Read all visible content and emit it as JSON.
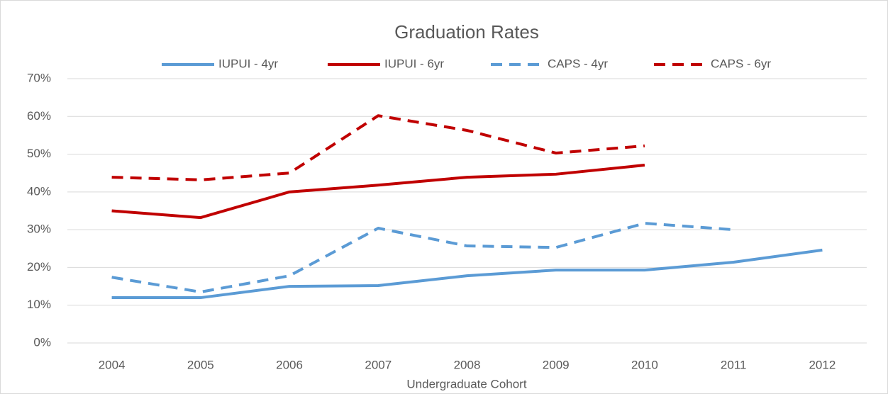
{
  "chart_data": {
    "type": "line",
    "title": "Graduation Rates",
    "x_label": "Undergraduate Cohort",
    "categories": [
      "2004",
      "2005",
      "2006",
      "2007",
      "2008",
      "2009",
      "2010",
      "2011",
      "2012"
    ],
    "series": [
      {
        "name": "IUPUI - 4yr",
        "color": "#5b9bd5",
        "dashed": false,
        "values": [
          12,
          12,
          15,
          15.2,
          17.8,
          19.3,
          19.3,
          21.4,
          24.6
        ]
      },
      {
        "name": "IUPUI - 6yr",
        "color": "#c00000",
        "dashed": false,
        "values": [
          35,
          33.2,
          40,
          41.8,
          43.9,
          44.7,
          47.1,
          null,
          null
        ]
      },
      {
        "name": "CAPS - 4yr",
        "color": "#5b9bd5",
        "dashed": true,
        "values": [
          17.4,
          13.5,
          17.8,
          30.4,
          25.7,
          25.3,
          31.7,
          30,
          null
        ]
      },
      {
        "name": "CAPS - 6yr",
        "color": "#c00000",
        "dashed": true,
        "values": [
          43.9,
          43.2,
          45,
          60.2,
          56.3,
          50.3,
          52.2,
          null,
          null
        ]
      }
    ],
    "ylim": [
      0,
      70
    ],
    "yticks": [
      {
        "value": 0,
        "label": "0%"
      },
      {
        "value": 10,
        "label": "10%"
      },
      {
        "value": 20,
        "label": "20%"
      },
      {
        "value": 30,
        "label": "30%"
      },
      {
        "value": 40,
        "label": "40%"
      },
      {
        "value": 50,
        "label": "50%"
      },
      {
        "value": 60,
        "label": "60%"
      },
      {
        "value": 70,
        "label": "70%"
      }
    ],
    "grid": true,
    "legend": "top"
  }
}
